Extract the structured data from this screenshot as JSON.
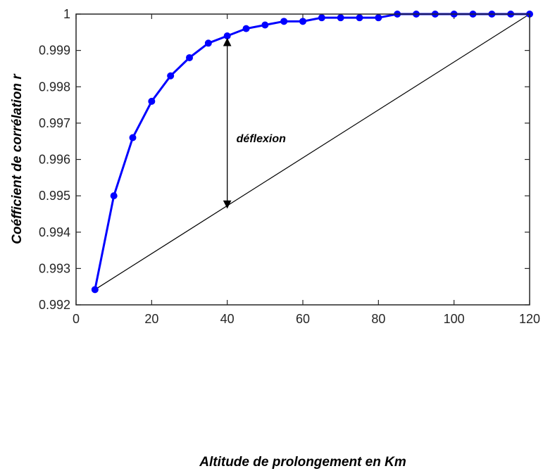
{
  "chart_data": {
    "type": "line",
    "xlabel": "Altitude de prolongement en Km",
    "ylabel": "Coéfficient de corrélation r",
    "xlim": [
      0,
      120
    ],
    "ylim": [
      0.992,
      1
    ],
    "xticks": [
      "0",
      "20",
      "40",
      "60",
      "80",
      "100",
      "120"
    ],
    "yticks": [
      "0.992",
      "0.993",
      "0.994",
      "0.995",
      "0.996",
      "0.997",
      "0.998",
      "0.999",
      "1"
    ],
    "grid": false,
    "series": [
      {
        "color": "#0000ff",
        "marker": "circle",
        "x": [
          5,
          10,
          15,
          20,
          25,
          30,
          35,
          40,
          45,
          50,
          55,
          60,
          65,
          70,
          75,
          80,
          85,
          90,
          95,
          100,
          105,
          110,
          115,
          120
        ],
        "y": [
          0.99242,
          0.995,
          0.9966,
          0.9976,
          0.9983,
          0.9988,
          0.9992,
          0.9994,
          0.9996,
          0.9997,
          0.9998,
          0.9998,
          0.9999,
          0.9999,
          0.9999,
          0.9999,
          1.0,
          1.0,
          1.0,
          1.0,
          1.0,
          1.0,
          1.0,
          1.0
        ]
      },
      {
        "color": "#000000",
        "x": [
          5,
          120
        ],
        "y": [
          0.99242,
          1.0
        ]
      }
    ],
    "annotations": [
      {
        "text": "déflexion",
        "arrow_x": 40,
        "arrow_y_from": 0.99463,
        "arrow_y_to": 0.9994
      }
    ]
  }
}
